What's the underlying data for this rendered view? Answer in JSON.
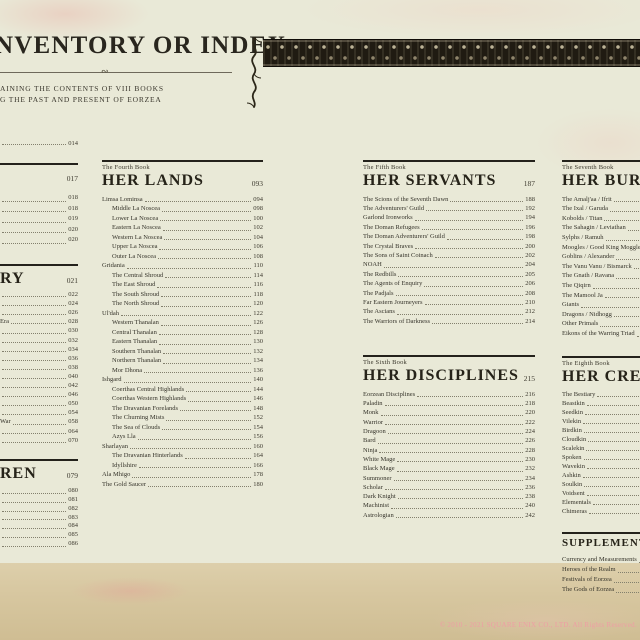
{
  "page": {
    "title_visible": "NVENTORY OR INDEX",
    "subtitle_line1": "AINING THE CONTENTS OF VIII BOOKS",
    "subtitle_line2": "G THE PAST AND PRESENT OF EORZEA",
    "copyright": "© 2010 - 2021 SQUARE ENIX CO., LTD. All Rights Reserved.",
    "colors": {
      "background": "#e9e9d7",
      "bottom_strip": "#d8c8a1",
      "ink": "#2e2b22",
      "copyright_pink": "#ef9da4"
    },
    "icons": {
      "flourish": "vine-flourish-icon",
      "border_band": "knotwork-border-band"
    }
  },
  "columns": [
    {
      "id": "1",
      "sections": [
        {
          "entries": [
            [
              "",
              "014"
            ]
          ],
          "lh": 7
        },
        {
          "rule": true,
          "gap": 16,
          "heading": "",
          "page": "017",
          "hfs": 10,
          "hmt": 9,
          "emt": 8,
          "lh": 10.5,
          "entries": [
            [
              "",
              "018"
            ],
            [
              "",
              "018"
            ],
            [
              "",
              "019"
            ],
            [
              "",
              "020"
            ],
            [
              "",
              "020"
            ]
          ]
        },
        {
          "rule": true,
          "gap": 18,
          "heading": "RY",
          "page": "021",
          "hmt": 4,
          "emt": 3,
          "lh": 9.1,
          "entries": [
            [
              "",
              "022"
            ],
            [
              "",
              "024"
            ],
            [
              "",
              "026"
            ],
            [
              "Era",
              "028"
            ],
            [
              "",
              "030"
            ],
            [
              "",
              "032"
            ],
            [
              "",
              "034"
            ],
            [
              "",
              "036"
            ],
            [
              "",
              "038"
            ],
            [
              "",
              "040"
            ],
            [
              "",
              "042"
            ],
            [
              "",
              "046"
            ],
            [
              "",
              "050"
            ],
            [
              "",
              "054"
            ],
            [
              "War",
              "058"
            ],
            [
              "",
              "064"
            ],
            [
              "",
              "070"
            ]
          ]
        },
        {
          "rule": true,
          "gap": 14,
          "heading": "REN",
          "page": "079",
          "hmt": 4,
          "emt": 5,
          "lh": 8.8,
          "entries": [
            [
              "",
              "080"
            ],
            [
              "",
              "081"
            ],
            [
              "",
              "082"
            ],
            [
              "",
              "083"
            ],
            [
              "",
              "084"
            ],
            [
              "",
              "085"
            ],
            [
              "",
              "086"
            ]
          ]
        }
      ]
    },
    {
      "id": "2",
      "sections": [
        {
          "rule": true,
          "book_label": "The Fourth Book",
          "heading": "HER LANDS",
          "page": "093",
          "lh": 9.5,
          "entries": [
            [
              "Limsa Lominsa",
              "094"
            ],
            [
              "Middle La Noscea",
              "098",
              1
            ],
            [
              "Lower La Noscea",
              "100",
              1
            ],
            [
              "Eastern La Noscea",
              "102",
              1
            ],
            [
              "Western La Noscea",
              "104",
              1
            ],
            [
              "Upper La Noscea",
              "106",
              1
            ],
            [
              "Outer La Noscea",
              "108",
              1
            ],
            [
              "Gridania",
              "110"
            ],
            [
              "The Central Shroud",
              "114",
              1
            ],
            [
              "The East Shroud",
              "116",
              1
            ],
            [
              "The South Shroud",
              "118",
              1
            ],
            [
              "The North Shroud",
              "120",
              1
            ],
            [
              "Ul'dah",
              "122"
            ],
            [
              "Western Thanalan",
              "126",
              1
            ],
            [
              "Central Thanalan",
              "128",
              1
            ],
            [
              "Eastern Thanalan",
              "130",
              1
            ],
            [
              "Southern Thanalan",
              "132",
              1
            ],
            [
              "Northern Thanalan",
              "134",
              1
            ],
            [
              "Mor Dhona",
              "136",
              1
            ],
            [
              "Ishgard",
              "140"
            ],
            [
              "Coerthas Central Highlands",
              "144",
              1
            ],
            [
              "Coerthas Western Highlands",
              "146",
              1
            ],
            [
              "The Dravanian Forelands",
              "148",
              1
            ],
            [
              "The Churning Mists",
              "152",
              1
            ],
            [
              "The Sea of Clouds",
              "154",
              1
            ],
            [
              "Azys Lla",
              "156",
              1
            ],
            [
              "Sharlayan",
              "160"
            ],
            [
              "The Dravanian Hinterlands",
              "164",
              1
            ],
            [
              "Idyllshire",
              "166",
              1
            ],
            [
              "Ala Mhigo",
              "178"
            ],
            [
              "The Gold Saucer",
              "180"
            ]
          ]
        }
      ]
    },
    {
      "id": "3",
      "sections": [
        {
          "rule": true,
          "book_label": "The Fifth Book",
          "heading": "HER SERVANTS",
          "page": "187",
          "lh": 9.4,
          "entries": [
            [
              "The Scions of the Seventh Dawn",
              "188"
            ],
            [
              "The Adventurers' Guild",
              "192"
            ],
            [
              "Garlond Ironworks",
              "194"
            ],
            [
              "The Doman Refugees",
              "196"
            ],
            [
              "The Doman Adventurers' Guild",
              "198"
            ],
            [
              "The Crystal Braves",
              "200"
            ],
            [
              "The Sons of Saint Coinach",
              "202"
            ],
            [
              "NOAH",
              "204"
            ],
            [
              "The Redbills",
              "205"
            ],
            [
              "The Agents of Enquiry",
              "206"
            ],
            [
              "The Padjals",
              "208"
            ],
            [
              "Far Eastern Journeyers",
              "210"
            ],
            [
              "The Ascians",
              "212"
            ],
            [
              "The Warriors of Darkness",
              "214"
            ]
          ]
        },
        {
          "rule": true,
          "gap": 29,
          "book_label": "The Sixth Book",
          "heading": "HER DISCIPLINES",
          "page": "215",
          "lh": 9.3,
          "entries": [
            [
              "Eorzean Disciplines",
              "216"
            ],
            [
              "Paladin",
              "218"
            ],
            [
              "Monk",
              "220"
            ],
            [
              "Warrior",
              "222"
            ],
            [
              "Dragoon",
              "224"
            ],
            [
              "Bard",
              "226"
            ],
            [
              "Ninja",
              "228"
            ],
            [
              "White Mage",
              "230"
            ],
            [
              "Black Mage",
              "232"
            ],
            [
              "Summoner",
              "234"
            ],
            [
              "Scholar",
              "236"
            ],
            [
              "Dark Knight",
              "238"
            ],
            [
              "Machinist",
              "240"
            ],
            [
              "Astrologian",
              "242"
            ]
          ]
        }
      ]
    },
    {
      "id": "4",
      "sections": [
        {
          "rule": true,
          "book_label": "The Seventh Book",
          "heading": "HER BURDENS",
          "page": "",
          "lh": 9.6,
          "entries": [
            [
              "The Amalj'aa / Ifrit",
              ""
            ],
            [
              "The Ixal / Garuda",
              ""
            ],
            [
              "Kobolds / Titan",
              ""
            ],
            [
              "The Sahagin / Leviathan",
              ""
            ],
            [
              "Sylphs / Ramuh",
              ""
            ],
            [
              "Moogles / Good King Moggle Mog",
              ""
            ],
            [
              "Goblins / Alexander",
              ""
            ],
            [
              "The Vanu Vanu / Bismarck",
              ""
            ],
            [
              "The Gnath / Ravana",
              ""
            ],
            [
              "The Qiqirn",
              ""
            ],
            [
              "The Mamool Ja",
              ""
            ],
            [
              "Giants",
              ""
            ],
            [
              "Dragons / Nidhogg",
              ""
            ],
            [
              "Other Primals",
              ""
            ],
            [
              "Eikons of the Warring Triad",
              ""
            ]
          ]
        },
        {
          "rule": true,
          "gap": 17,
          "book_label": "The Eighth Book",
          "heading": "HER CREATURES",
          "page": "",
          "lh": 9,
          "entries": [
            [
              "The Bestiary",
              ""
            ],
            [
              "Beastkin",
              ""
            ],
            [
              "Seedkin",
              ""
            ],
            [
              "Vilekin",
              ""
            ],
            [
              "Birdkin",
              ""
            ],
            [
              "Cloudkin",
              ""
            ],
            [
              "Scalekin",
              ""
            ],
            [
              "Spoken",
              ""
            ],
            [
              "Wavekin",
              ""
            ],
            [
              "Ashkin",
              ""
            ],
            [
              "Soulkin",
              ""
            ],
            [
              "Voidsent",
              ""
            ],
            [
              "Elementals",
              ""
            ],
            [
              "Chimeras",
              ""
            ]
          ]
        },
        {
          "rule": true,
          "gap": 16,
          "heading": "SUPPLEMENTS",
          "page": "",
          "hfs": 11,
          "hmt": 3,
          "emt": 6,
          "lh": 10,
          "entries": [
            [
              "Currency and Measurements",
              ""
            ],
            [
              "Heroes of the Realm",
              ""
            ],
            [
              "Festivals of Eorzea",
              ""
            ],
            [
              "The Gods of Eorzea",
              ""
            ]
          ]
        }
      ]
    }
  ]
}
